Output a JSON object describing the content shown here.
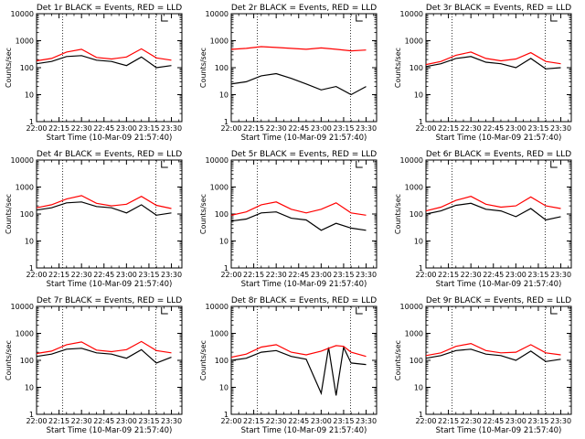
{
  "figure": {
    "xlabel": "Start Time (10-Mar-09 21:57:40)",
    "ylabel": "Counts/sec",
    "x_tick_labels": [
      "22:00",
      "22:15",
      "22:30",
      "22:45",
      "23:00",
      "23:15",
      "23:30"
    ],
    "y_tick_labels": [
      "1",
      "10",
      "100",
      "1000",
      "10000"
    ],
    "colors": {
      "events": "#000000",
      "lld": "#ff0000",
      "axes": "#000000"
    }
  },
  "chart_data": [
    {
      "type": "line",
      "title": "Det 1r BLACK = Events, RED = LLD",
      "x": [
        "22:00",
        "22:10",
        "22:20",
        "22:30",
        "22:40",
        "22:50",
        "23:00",
        "23:10",
        "23:20",
        "23:30"
      ],
      "series": [
        {
          "name": "Events",
          "values": [
            140,
            170,
            260,
            280,
            190,
            170,
            120,
            250,
            100,
            120
          ]
        },
        {
          "name": "LLD",
          "values": [
            180,
            220,
            380,
            480,
            240,
            210,
            250,
            500,
            230,
            190
          ]
        }
      ],
      "y_scale": "log",
      "ylim": [
        1,
        10000
      ],
      "xlim": [
        "22:00",
        "23:37"
      ]
    },
    {
      "type": "line",
      "title": "Det 2r BLACK = Events, RED = LLD",
      "x": [
        "22:00",
        "22:10",
        "22:20",
        "22:30",
        "22:40",
        "22:50",
        "23:00",
        "23:10",
        "23:20",
        "23:30"
      ],
      "series": [
        {
          "name": "Events",
          "values": [
            25,
            30,
            50,
            60,
            40,
            25,
            15,
            20,
            10,
            20
          ]
        },
        {
          "name": "LLD",
          "values": [
            480,
            520,
            600,
            560,
            520,
            480,
            540,
            480,
            420,
            450
          ]
        }
      ],
      "y_scale": "log",
      "ylim": [
        1,
        10000
      ],
      "xlim": [
        "22:00",
        "23:37"
      ]
    },
    {
      "type": "line",
      "title": "Det 3r BLACK = Events, RED = LLD",
      "x": [
        "22:00",
        "22:10",
        "22:20",
        "22:30",
        "22:40",
        "22:50",
        "23:00",
        "23:10",
        "23:20",
        "23:30"
      ],
      "series": [
        {
          "name": "Events",
          "values": [
            110,
            140,
            220,
            260,
            160,
            140,
            100,
            220,
            90,
            100
          ]
        },
        {
          "name": "LLD",
          "values": [
            130,
            170,
            290,
            380,
            220,
            180,
            210,
            360,
            170,
            140
          ]
        }
      ],
      "y_scale": "log",
      "ylim": [
        1,
        10000
      ],
      "xlim": [
        "22:00",
        "23:37"
      ]
    },
    {
      "type": "line",
      "title": "Det 4r BLACK = Events, RED = LLD",
      "x": [
        "22:00",
        "22:10",
        "22:20",
        "22:30",
        "22:40",
        "22:50",
        "23:00",
        "23:10",
        "23:20",
        "23:30"
      ],
      "series": [
        {
          "name": "Events",
          "values": [
            140,
            170,
            260,
            280,
            190,
            170,
            110,
            220,
            90,
            110
          ]
        },
        {
          "name": "LLD",
          "values": [
            170,
            220,
            360,
            480,
            250,
            200,
            230,
            450,
            210,
            160
          ]
        }
      ],
      "y_scale": "log",
      "ylim": [
        1,
        10000
      ],
      "xlim": [
        "22:00",
        "23:37"
      ]
    },
    {
      "type": "line",
      "title": "Det 5r BLACK = Events, RED = LLD",
      "x": [
        "22:00",
        "22:10",
        "22:20",
        "22:30",
        "22:40",
        "22:50",
        "23:00",
        "23:10",
        "23:20",
        "23:30"
      ],
      "series": [
        {
          "name": "Events",
          "values": [
            55,
            65,
            110,
            120,
            70,
            60,
            25,
            45,
            30,
            25
          ]
        },
        {
          "name": "LLD",
          "values": [
            90,
            120,
            220,
            280,
            150,
            110,
            150,
            260,
            110,
            90
          ]
        }
      ],
      "y_scale": "log",
      "ylim": [
        1,
        10000
      ],
      "xlim": [
        "22:00",
        "23:37"
      ]
    },
    {
      "type": "line",
      "title": "Det 6r BLACK = Events, RED = LLD",
      "x": [
        "22:00",
        "22:10",
        "22:20",
        "22:30",
        "22:40",
        "22:50",
        "23:00",
        "23:10",
        "23:20",
        "23:30"
      ],
      "series": [
        {
          "name": "Events",
          "values": [
            100,
            130,
            210,
            250,
            150,
            130,
            80,
            160,
            60,
            80
          ]
        },
        {
          "name": "LLD",
          "values": [
            130,
            180,
            320,
            450,
            230,
            180,
            200,
            430,
            200,
            160
          ]
        }
      ],
      "y_scale": "log",
      "ylim": [
        1,
        10000
      ],
      "xlim": [
        "22:00",
        "23:37"
      ]
    },
    {
      "type": "line",
      "title": "Det 7r BLACK = Events, RED = LLD",
      "x": [
        "22:00",
        "22:10",
        "22:20",
        "22:30",
        "22:40",
        "22:50",
        "23:00",
        "23:10",
        "23:20",
        "23:30"
      ],
      "series": [
        {
          "name": "Events",
          "values": [
            140,
            170,
            260,
            280,
            190,
            170,
            120,
            250,
            80,
            130
          ]
        },
        {
          "name": "LLD",
          "values": [
            180,
            220,
            380,
            480,
            240,
            210,
            250,
            500,
            230,
            190
          ]
        }
      ],
      "y_scale": "log",
      "ylim": [
        1,
        10000
      ],
      "xlim": [
        "22:00",
        "23:37"
      ]
    },
    {
      "type": "line",
      "title": "Det 8r BLACK = Events, RED = LLD",
      "x": [
        "22:00",
        "22:10",
        "22:20",
        "22:30",
        "22:40",
        "22:50",
        "23:00",
        "23:05",
        "23:10",
        "23:15",
        "23:20",
        "23:30"
      ],
      "series": [
        {
          "name": "Events",
          "values": [
            100,
            120,
            200,
            230,
            140,
            110,
            6,
            300,
            5,
            300,
            80,
            70
          ]
        },
        {
          "name": "LLD",
          "values": [
            130,
            170,
            310,
            380,
            200,
            160,
            220,
            280,
            350,
            330,
            200,
            140
          ]
        }
      ],
      "y_scale": "log",
      "ylim": [
        1,
        10000
      ],
      "xlim": [
        "22:00",
        "23:37"
      ]
    },
    {
      "type": "line",
      "title": "Det 9r BLACK = Events, RED = LLD",
      "x": [
        "22:00",
        "22:10",
        "22:20",
        "22:30",
        "22:40",
        "22:50",
        "23:00",
        "23:10",
        "23:20",
        "23:30"
      ],
      "series": [
        {
          "name": "Events",
          "values": [
            120,
            150,
            230,
            260,
            170,
            150,
            100,
            220,
            90,
            110
          ]
        },
        {
          "name": "LLD",
          "values": [
            150,
            190,
            330,
            420,
            230,
            190,
            200,
            380,
            190,
            160
          ]
        }
      ],
      "y_scale": "log",
      "ylim": [
        1,
        10000
      ],
      "xlim": [
        "22:00",
        "23:37"
      ]
    }
  ]
}
